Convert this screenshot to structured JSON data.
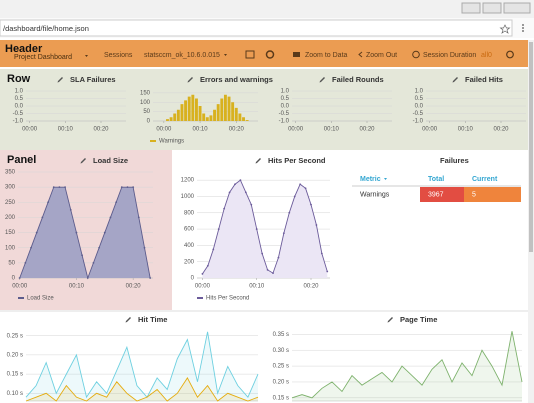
{
  "browser": {
    "address": "/dashboard/file/home.json"
  },
  "header": {
    "annotation": "Header",
    "title": "Project Dashboard",
    "sessions_label": "Sessions",
    "session": "statsccm_ok_10.6.0.015",
    "zoom_to_data": "Zoom to Data",
    "zoom_out": "Zoom Out",
    "session_duration": "Session Duration",
    "duration_value": "all0"
  },
  "annotations": {
    "row": "Row",
    "panel": "Panel"
  },
  "chart_data": [
    {
      "type": "line",
      "title": "SLA Failures",
      "xlim": [
        -1,
        27
      ],
      "xticks": [
        {
          "value": 0,
          "label": "00:00"
        },
        {
          "value": 10,
          "label": "00:10"
        },
        {
          "value": 20,
          "label": "00:20"
        }
      ],
      "ylim": [
        -1,
        1
      ],
      "yticks": [
        {
          "value": 1,
          "label": "1.0"
        },
        0.5,
        {
          "value": 0,
          "label": "0.0"
        },
        -0.5,
        {
          "value": -1,
          "label": "-1.0"
        }
      ]
    },
    {
      "type": "bar",
      "title": "Errors and warnings",
      "xlim": [
        -3,
        26
      ],
      "xticks": [
        {
          "value": 0,
          "label": "00:00"
        },
        {
          "value": 10,
          "label": "00:10"
        },
        {
          "value": 20,
          "label": "00:20"
        }
      ],
      "ylim": [
        0,
        160
      ],
      "yticks": [
        0,
        50,
        100,
        150
      ],
      "x": [
        0,
        1,
        2,
        3,
        4,
        5,
        6,
        7,
        8,
        9,
        10,
        11,
        12,
        13,
        14,
        15,
        16,
        17,
        18,
        19,
        20,
        21,
        22,
        23
      ],
      "series": [
        {
          "name": "Warnings",
          "color": "#d8b11e",
          "values": [
            0,
            10,
            20,
            40,
            60,
            90,
            110,
            130,
            140,
            120,
            80,
            40,
            20,
            30,
            60,
            90,
            120,
            140,
            130,
            100,
            70,
            40,
            20,
            5
          ]
        }
      ]
    },
    {
      "type": "line",
      "title": "Failed Rounds",
      "xlim": [
        -1,
        27
      ],
      "xticks": [
        {
          "value": 0,
          "label": "00:00"
        },
        {
          "value": 10,
          "label": "00:10"
        },
        {
          "value": 20,
          "label": "00:20"
        }
      ],
      "ylim": [
        -1,
        1
      ],
      "yticks": [
        {
          "value": 1,
          "label": "1.0"
        },
        0.5,
        {
          "value": 0,
          "label": "0.0"
        },
        -0.5,
        {
          "value": -1,
          "label": "-1.0"
        }
      ]
    },
    {
      "type": "line",
      "title": "Failed Hits",
      "xlim": [
        -1,
        27
      ],
      "xticks": [
        {
          "value": 0,
          "label": "00:00"
        },
        {
          "value": 10,
          "label": "00:10"
        },
        {
          "value": 20,
          "label": "00:20"
        }
      ],
      "ylim": [
        -1,
        1
      ],
      "yticks": [
        {
          "value": 1,
          "label": "1.0"
        },
        0.5,
        {
          "value": 0,
          "label": "0.0"
        },
        -0.5,
        {
          "value": -1,
          "label": "-1.0"
        }
      ]
    },
    {
      "type": "area",
      "title": "Load Size",
      "xlim": [
        -0.3,
        23.5
      ],
      "xticks": [
        {
          "value": 0,
          "label": "00:00"
        },
        {
          "value": 10,
          "label": "00:10"
        },
        {
          "value": 20,
          "label": "00:20"
        }
      ],
      "ylim": [
        0,
        350
      ],
      "yticks": [
        0,
        50,
        100,
        150,
        200,
        250,
        300,
        350
      ],
      "x": [
        0,
        1,
        2,
        3,
        4,
        5,
        6,
        7,
        8,
        9,
        10,
        11,
        12,
        13,
        14,
        15,
        16,
        17,
        18,
        19,
        20,
        21,
        22,
        23
      ],
      "series": [
        {
          "name": "Load Size",
          "color": "#5c5c8c",
          "values": [
            0,
            50,
            100,
            150,
            200,
            250,
            300,
            300,
            300,
            225,
            150,
            75,
            0,
            50,
            100,
            150,
            200,
            250,
            300,
            300,
            300,
            200,
            100,
            0
          ]
        }
      ]
    },
    {
      "type": "area",
      "title": "Hits Per Second",
      "xlim": [
        -1,
        23.5
      ],
      "xticks": [
        {
          "value": 0,
          "label": "00:00"
        },
        {
          "value": 10,
          "label": "00:10"
        },
        {
          "value": 20,
          "label": "00:20"
        }
      ],
      "ylim": [
        0,
        1300
      ],
      "yticks": [
        0,
        200,
        400,
        600,
        800,
        1000,
        1200
      ],
      "x": [
        0,
        1,
        2,
        3,
        4,
        5,
        6,
        7,
        8,
        9,
        10,
        11,
        12,
        13,
        14,
        15,
        16,
        17,
        18,
        19,
        20,
        21,
        22,
        23
      ],
      "series": [
        {
          "name": "Hits Per Second",
          "color": "#6b5b9a",
          "values": [
            50,
            150,
            350,
            600,
            850,
            1050,
            1150,
            1200,
            1050,
            900,
            600,
            300,
            100,
            60,
            250,
            550,
            800,
            1000,
            1150,
            1100,
            900,
            650,
            300,
            80
          ]
        }
      ]
    },
    {
      "type": "line",
      "title": "Hit Time",
      "xlim": [
        0,
        23
      ],
      "ylim": [
        0.08,
        0.27
      ],
      "yticks": [
        {
          "value": 0.25,
          "label": "0.25 s"
        },
        {
          "value": 0.2,
          "label": "0.20 s"
        },
        {
          "value": 0.15,
          "label": "0.15 s"
        },
        {
          "value": 0.1,
          "label": "0.10 s"
        }
      ],
      "x": [
        0,
        1,
        2,
        3,
        4,
        5,
        6,
        7,
        8,
        9,
        10,
        11,
        12,
        13,
        14,
        15,
        16,
        17,
        18,
        19,
        20,
        21,
        22,
        23
      ],
      "series": [
        {
          "color": "#6ed0e0",
          "values": [
            0.09,
            0.12,
            0.18,
            0.1,
            0.15,
            0.2,
            0.09,
            0.13,
            0.1,
            0.16,
            0.22,
            0.12,
            0.09,
            0.14,
            0.11,
            0.19,
            0.24,
            0.13,
            0.26,
            0.1,
            0.17,
            0.12,
            0.09,
            0.15
          ]
        },
        {
          "color": "#e5ac0e",
          "values": [
            0.08,
            0.09,
            0.1,
            0.08,
            0.12,
            0.09,
            0.08,
            0.1,
            0.09,
            0.13,
            0.1,
            0.08,
            0.09,
            0.11,
            0.08,
            0.1,
            0.14,
            0.09,
            0.12,
            0.08,
            0.1,
            0.09,
            0.08,
            0.09
          ]
        }
      ]
    },
    {
      "type": "line",
      "title": "Page Time",
      "xlim": [
        0,
        23
      ],
      "ylim": [
        0.14,
        0.37
      ],
      "yticks": [
        {
          "value": 0.35,
          "label": "0.35 s"
        },
        {
          "value": 0.3,
          "label": "0.30 s"
        },
        {
          "value": 0.25,
          "label": "0.25 s"
        },
        {
          "value": 0.2,
          "label": "0.20 s"
        },
        {
          "value": 0.15,
          "label": "0.15 s"
        }
      ],
      "x": [
        0,
        1,
        2,
        3,
        4,
        5,
        6,
        7,
        8,
        9,
        10,
        11,
        12,
        13,
        14,
        15,
        16,
        17,
        18,
        19,
        20,
        21,
        22,
        23
      ],
      "series": [
        {
          "color": "#7eb26d",
          "values": [
            0.15,
            0.16,
            0.15,
            0.18,
            0.2,
            0.17,
            0.22,
            0.19,
            0.21,
            0.23,
            0.2,
            0.25,
            0.22,
            0.19,
            0.24,
            0.27,
            0.2,
            0.26,
            0.22,
            0.3,
            0.25,
            0.19,
            0.36,
            0.2
          ]
        }
      ]
    }
  ],
  "failures": {
    "title": "Failures",
    "columns": [
      "Metric",
      "Total",
      "Current"
    ],
    "rows": [
      [
        "Warnings",
        3967,
        5
      ]
    ]
  }
}
